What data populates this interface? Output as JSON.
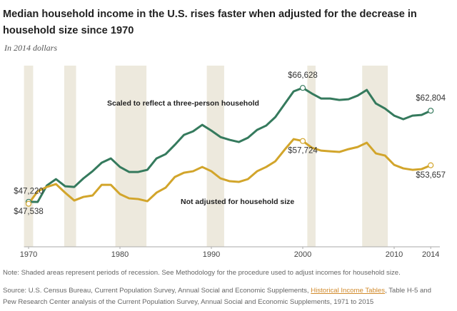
{
  "chart_data": {
    "type": "line",
    "title": [
      "Median household income in the U.S. rises faster when adjusted for the decrease in",
      "household size since 1970"
    ],
    "subtitle": "In 2014 dollars",
    "x": [
      1970,
      1971,
      1972,
      1973,
      1974,
      1975,
      1976,
      1977,
      1978,
      1979,
      1980,
      1981,
      1982,
      1983,
      1984,
      1985,
      1986,
      1987,
      1988,
      1989,
      1990,
      1991,
      1992,
      1993,
      1994,
      1995,
      1996,
      1997,
      1998,
      1999,
      2000,
      2001,
      2002,
      2003,
      2004,
      2005,
      2006,
      2007,
      2008,
      2009,
      2010,
      2011,
      2012,
      2013,
      2014
    ],
    "xlim": [
      1969.5,
      2015
    ],
    "xticks": [
      1970,
      1980,
      1990,
      2000,
      2010,
      2014
    ],
    "ylim": [
      40000,
      70000
    ],
    "recessions": [
      [
        1969.5,
        1970.5
      ],
      [
        1973.9,
        1975.2
      ],
      [
        1979.5,
        1982.9
      ],
      [
        1989.5,
        1991.4
      ],
      [
        2000.5,
        2001.4
      ],
      [
        2006.5,
        2009.3
      ]
    ],
    "recession_color": "#ede9dd",
    "series": [
      {
        "name": "Scaled to reflect a three-person household",
        "color": "#357a5d",
        "values": [
          47538,
          47520,
          50270,
          51340,
          50150,
          50030,
          51460,
          52660,
          54090,
          54810,
          53380,
          52540,
          52540,
          52900,
          54810,
          55530,
          57080,
          58750,
          59350,
          60430,
          59470,
          58390,
          57920,
          57560,
          58270,
          59590,
          60310,
          61740,
          63890,
          66040,
          66628,
          65680,
          64850,
          64850,
          64610,
          64730,
          65330,
          66280,
          64010,
          63170,
          61980,
          61380,
          61980,
          62100,
          62804
        ],
        "value_labels": [
          "$47,538",
          null,
          null,
          null,
          null,
          null,
          null,
          null,
          null,
          null,
          null,
          null,
          null,
          null,
          null,
          null,
          null,
          null,
          null,
          null,
          null,
          null,
          null,
          null,
          null,
          null,
          null,
          null,
          null,
          null,
          "$66,628",
          null,
          null,
          null,
          null,
          null,
          null,
          null,
          null,
          null,
          null,
          null,
          null,
          null,
          "$62,804"
        ]
      },
      {
        "name": "Not adjusted for household size",
        "color": "#d2a52b",
        "values": [
          47220,
          49310,
          50030,
          50510,
          49070,
          47760,
          48360,
          48600,
          50390,
          50390,
          48830,
          48120,
          48000,
          47640,
          49070,
          49910,
          51700,
          52420,
          52660,
          53380,
          52660,
          51460,
          50990,
          50870,
          51340,
          52660,
          53380,
          54330,
          56240,
          58040,
          57724,
          56600,
          56120,
          56000,
          55890,
          56360,
          56720,
          57440,
          55650,
          55290,
          53730,
          53140,
          52900,
          53020,
          53657
        ],
        "value_labels": [
          "$47,220",
          null,
          null,
          null,
          null,
          null,
          null,
          null,
          null,
          null,
          null,
          null,
          null,
          null,
          null,
          null,
          null,
          null,
          null,
          null,
          null,
          null,
          null,
          null,
          null,
          null,
          null,
          null,
          null,
          null,
          "$57,724",
          null,
          null,
          null,
          null,
          null,
          null,
          null,
          null,
          null,
          null,
          null,
          null,
          null,
          "$53,657"
        ]
      }
    ],
    "note": "Note: Shaded areas represent periods of recession. See Methodology for the procedure used to adjust incomes for household size.",
    "source": {
      "prefix": "Source: U.S. Census Bureau, Current Population Survey, Annual Social and Economic Supplements,",
      "link": "Historical Income Tables",
      "suffix": ", Table H-5 and",
      "line2": "Pew Research Center analysis of the Current Population Survey, Annual Social and Economic Supplements, 1971 to 2015"
    }
  }
}
